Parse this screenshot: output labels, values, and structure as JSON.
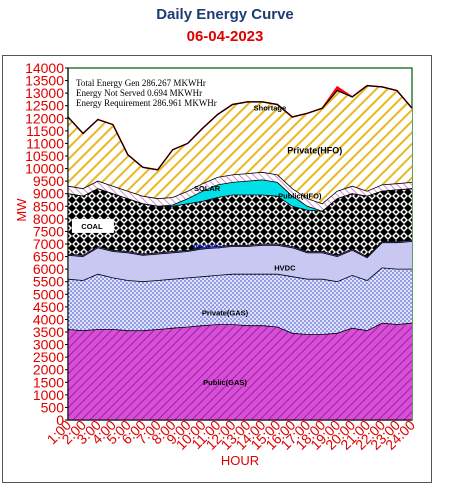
{
  "chart_data": {
    "type": "area",
    "title": "Daily Energy Curve",
    "subtitle": "06-04-2023",
    "xlabel": "HOUR",
    "ylabel": "MW",
    "ylim": [
      0,
      14000
    ],
    "yticks": [
      0,
      500,
      1000,
      1500,
      2000,
      2500,
      3000,
      3500,
      4000,
      4500,
      5000,
      5500,
      6000,
      6500,
      7000,
      7500,
      8000,
      8500,
      9000,
      9500,
      10000,
      10500,
      11000,
      11500,
      12000,
      12500,
      13000,
      13500,
      14000
    ],
    "categories": [
      "1:00",
      "2:00",
      "3:00",
      "4:00",
      "5:00",
      "6:00",
      "7:00",
      "8:00",
      "9:00",
      "10:00",
      "11:00",
      "12:00",
      "13:00",
      "14:00",
      "15:00",
      "16:00",
      "17:00",
      "18:00",
      "19:00",
      "20:00",
      "21:00",
      "22:00",
      "23:00",
      "24:00"
    ],
    "info_box": [
      "Total Energy Gen 286.267 MKWHr",
      "Energy Not Served   0.694 MKWHr",
      "Energy Requirement     286.961 MKWHr"
    ],
    "series_cumulative": [
      {
        "name": "Public(GAS)",
        "label": "Public(GAS)",
        "label_xy": [
          11.5,
          1400
        ],
        "fill": "#cc33cc",
        "pattern": "hatch-pink",
        "values": [
          3600,
          3550,
          3600,
          3600,
          3550,
          3550,
          3600,
          3650,
          3700,
          3750,
          3800,
          3800,
          3750,
          3750,
          3700,
          3450,
          3400,
          3400,
          3450,
          3650,
          3550,
          3850,
          3800,
          3850
        ]
      },
      {
        "name": "Private(GAS)",
        "label": "Private(GAS)",
        "label_xy": [
          11.5,
          4150
        ],
        "fill": "#a9b4f0",
        "pattern": "dots-blue",
        "values": [
          5600,
          5550,
          5800,
          5650,
          5550,
          5500,
          5550,
          5600,
          5650,
          5700,
          5750,
          5800,
          5800,
          5800,
          5800,
          5700,
          5600,
          5600,
          5500,
          5750,
          5550,
          6050,
          6000,
          6000
        ]
      },
      {
        "name": "HVDC",
        "label": "HVDC",
        "label_xy": [
          15.5,
          5950
        ],
        "fill": "#c8c8f2",
        "pattern": "solid-lav",
        "values": [
          6550,
          6500,
          6850,
          6700,
          6650,
          6550,
          6600,
          6650,
          6700,
          6800,
          6850,
          6900,
          6900,
          6950,
          6950,
          6850,
          6650,
          6650,
          6500,
          6750,
          6450,
          7050,
          7050,
          7100
        ]
      },
      {
        "name": "Imports",
        "label": "Imports",
        "label_xy": [
          10.3,
          6820
        ],
        "fill": "#7d7dd6",
        "pattern": "solid-purple",
        "values": [
          6600,
          6550,
          6900,
          6750,
          6700,
          6600,
          6650,
          6700,
          6750,
          6850,
          6900,
          6950,
          6950,
          7000,
          7000,
          6900,
          6700,
          6700,
          6550,
          6800,
          6500,
          7100,
          7100,
          7150
        ]
      },
      {
        "name": "COAL",
        "label": "COAL",
        "label_xy": [
          2.6,
          7600
        ],
        "fill": "#000000",
        "pattern": "diamond",
        "values": [
          9000,
          8900,
          9200,
          9000,
          8800,
          8600,
          8500,
          8500,
          8600,
          8700,
          8850,
          8950,
          8950,
          8950,
          8900,
          8500,
          8350,
          8300,
          8800,
          9000,
          8900,
          9100,
          9150,
          9200
        ]
      },
      {
        "name": "SOLAR",
        "label": "SOLAR",
        "label_xy": [
          10.3,
          9100
        ],
        "fill": "#00e5e5",
        "pattern": "solid-cyan",
        "values": [
          9000,
          8900,
          9200,
          9000,
          8800,
          8600,
          8500,
          8550,
          8800,
          9100,
          9350,
          9450,
          9500,
          9550,
          9450,
          8900,
          8500,
          8300,
          8800,
          9000,
          8900,
          9100,
          9150,
          9200
        ]
      },
      {
        "name": "Public(HFO)",
        "label": "Public(HFO)",
        "label_xy": [
          16.5,
          8800
        ],
        "fill": "#ffffff",
        "pattern": "hatch-pink-thin",
        "values": [
          9300,
          9200,
          9500,
          9300,
          9100,
          8900,
          8800,
          8850,
          9100,
          9400,
          9650,
          9750,
          9800,
          9850,
          9750,
          9200,
          8800,
          8600,
          9100,
          9300,
          9100,
          9350,
          9400,
          9450
        ]
      },
      {
        "name": "Private(HFO)",
        "label": "Private(HFO)",
        "label_xy": [
          17.5,
          10600
        ],
        "fill": "#f6d36b",
        "pattern": "hatch-yellow",
        "values": [
          12050,
          11400,
          11950,
          11750,
          10550,
          10050,
          9950,
          10750,
          11000,
          11600,
          12150,
          12550,
          12650,
          12650,
          12550,
          12050,
          12200,
          12400,
          13100,
          12850,
          13300,
          13250,
          13100,
          12400
        ]
      },
      {
        "name": "Shortage",
        "label": "Shortage",
        "label_xy": [
          14.5,
          12300
        ],
        "fill": "#ff0000",
        "pattern": "solid-red",
        "values": [
          12050,
          11400,
          11950,
          11750,
          10550,
          10050,
          9950,
          10750,
          11000,
          11600,
          12150,
          12550,
          12650,
          12650,
          12550,
          12050,
          12200,
          12400,
          13250,
          12850,
          13300,
          13250,
          13100,
          12400
        ]
      }
    ]
  }
}
